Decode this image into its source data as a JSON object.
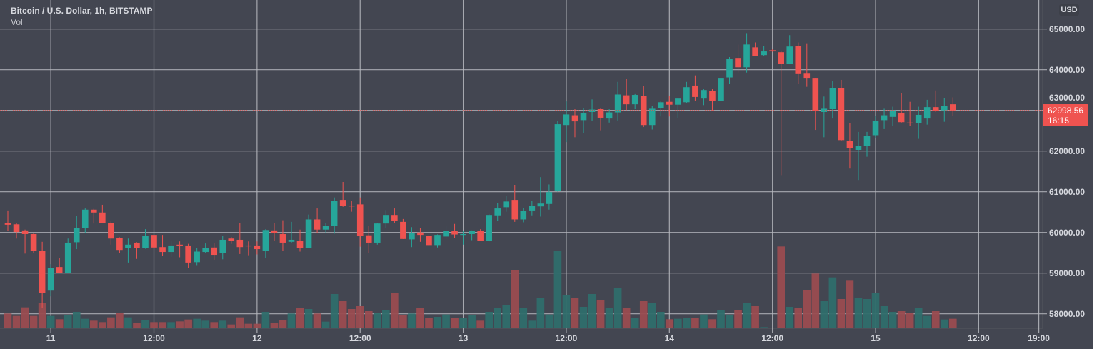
{
  "header": {
    "symbol_title": "Bitcoin / U.S. Dollar, 1h, BITSTAMP",
    "volume_label": "Vol",
    "currency": "USD"
  },
  "price_label": {
    "price": "62998.56",
    "countdown": "16:15"
  },
  "colors": {
    "background": "#434651",
    "grid": "#b8bac0",
    "up": "#26a69a",
    "down": "#ef5350",
    "volume_up": "#2f6e6b",
    "volume_down": "#9a4c50"
  },
  "chart_data": {
    "type": "candlestick",
    "title": "Bitcoin / U.S. Dollar, 1h, BITSTAMP",
    "ylim": [
      57650,
      65700
    ],
    "grid": true,
    "y_ticks": [
      "65000.00",
      "64000.00",
      "63000.00",
      "62000.00",
      "61000.00",
      "60000.00",
      "59000.00",
      "58000.00"
    ],
    "y_tick_values": [
      65000,
      64000,
      63000,
      62000,
      61000,
      60000,
      59000,
      58000
    ],
    "x_ticks": [
      {
        "label": "11",
        "at_bar": 5
      },
      {
        "label": "12:00",
        "at_bar": 17
      },
      {
        "label": "12",
        "at_bar": 29
      },
      {
        "label": "12:00",
        "at_bar": 41
      },
      {
        "label": "13",
        "at_bar": 53
      },
      {
        "label": "12:00",
        "at_bar": 65
      },
      {
        "label": "14",
        "at_bar": 77
      },
      {
        "label": "12:00",
        "at_bar": 89
      },
      {
        "label": "15",
        "at_bar": 101
      },
      {
        "label": "12:00",
        "at_bar": 113
      },
      {
        "label": "19:00",
        "at_bar": 120
      }
    ],
    "last_price": 62998.56,
    "candles_ohlc": [
      [
        60240,
        60540,
        60030,
        60190
      ],
      [
        60200,
        60230,
        59850,
        60010
      ],
      [
        60050,
        60070,
        59480,
        59960
      ],
      [
        59960,
        59980,
        59490,
        59540
      ],
      [
        59540,
        59770,
        58140,
        58520
      ],
      [
        58570,
        59220,
        58430,
        59120
      ],
      [
        59150,
        59380,
        59000,
        59000
      ],
      [
        59000,
        59850,
        59000,
        59750
      ],
      [
        59760,
        60400,
        59590,
        60100
      ],
      [
        60100,
        60590,
        59980,
        60560
      ],
      [
        60560,
        60580,
        60220,
        60490
      ],
      [
        60490,
        60680,
        60230,
        60230
      ],
      [
        60240,
        60270,
        59700,
        59850
      ],
      [
        59870,
        59880,
        59490,
        59570
      ],
      [
        59610,
        59850,
        59260,
        59700
      ],
      [
        59750,
        59760,
        59350,
        59610
      ],
      [
        59610,
        60080,
        59600,
        59910
      ],
      [
        59940,
        59950,
        59360,
        59630
      ],
      [
        59640,
        59940,
        59430,
        59520
      ],
      [
        59520,
        59780,
        59400,
        59680
      ],
      [
        59700,
        59780,
        59390,
        59670
      ],
      [
        59680,
        59720,
        59130,
        59260
      ],
      [
        59270,
        59620,
        59180,
        59530
      ],
      [
        59520,
        59730,
        59500,
        59610
      ],
      [
        59630,
        59730,
        59330,
        59450
      ],
      [
        59500,
        59910,
        59340,
        59820
      ],
      [
        59850,
        59890,
        59720,
        59790
      ],
      [
        59820,
        60230,
        59470,
        59640
      ],
      [
        59680,
        59780,
        59440,
        59670
      ],
      [
        59680,
        59780,
        59460,
        59590
      ],
      [
        59540,
        60080,
        59370,
        60060
      ],
      [
        60050,
        60230,
        59790,
        59980
      ],
      [
        59960,
        60300,
        59540,
        59750
      ],
      [
        59770,
        60260,
        59750,
        59820
      ],
      [
        59800,
        60070,
        59530,
        59620
      ],
      [
        59620,
        60440,
        59610,
        60320
      ],
      [
        60320,
        60590,
        59990,
        60070
      ],
      [
        60070,
        60240,
        59980,
        60170
      ],
      [
        60170,
        60860,
        59970,
        60770
      ],
      [
        60800,
        61240,
        60630,
        60660
      ],
      [
        60660,
        60780,
        60510,
        60640
      ],
      [
        60690,
        60860,
        59650,
        59920
      ],
      [
        59930,
        60160,
        59490,
        59750
      ],
      [
        59750,
        60230,
        59700,
        60220
      ],
      [
        60220,
        60550,
        60110,
        60430
      ],
      [
        60430,
        60590,
        60240,
        60290
      ],
      [
        60260,
        60330,
        59840,
        59840
      ],
      [
        59830,
        60130,
        59640,
        59990
      ],
      [
        60000,
        60100,
        59770,
        59940
      ],
      [
        59920,
        59940,
        59680,
        59690
      ],
      [
        59690,
        59950,
        59630,
        59940
      ],
      [
        59900,
        60170,
        59840,
        60040
      ],
      [
        60040,
        60210,
        59860,
        59950
      ],
      [
        59950,
        60030,
        59700,
        59960
      ],
      [
        59960,
        60050,
        59810,
        60030
      ],
      [
        60040,
        60080,
        59800,
        59800
      ],
      [
        59800,
        60450,
        59780,
        60430
      ],
      [
        60420,
        60720,
        60290,
        60590
      ],
      [
        60620,
        60890,
        60510,
        60760
      ],
      [
        60800,
        61170,
        60260,
        60320
      ],
      [
        60320,
        60600,
        60250,
        60530
      ],
      [
        60540,
        60770,
        60420,
        60650
      ],
      [
        60640,
        61360,
        60390,
        60710
      ],
      [
        60700,
        61180,
        60560,
        60990
      ],
      [
        61020,
        62750,
        61000,
        62660
      ],
      [
        62640,
        63220,
        62220,
        62900
      ],
      [
        62880,
        63030,
        62340,
        62730
      ],
      [
        62760,
        63050,
        62450,
        62940
      ],
      [
        62960,
        63270,
        62750,
        63020
      ],
      [
        63030,
        63050,
        62510,
        62820
      ],
      [
        62800,
        63030,
        62700,
        62950
      ],
      [
        62950,
        63700,
        62750,
        63390
      ],
      [
        63370,
        63770,
        63000,
        63150
      ],
      [
        63150,
        63400,
        63030,
        63380
      ],
      [
        63360,
        63600,
        62590,
        62640
      ],
      [
        62640,
        63110,
        62530,
        63040
      ],
      [
        63050,
        63240,
        62850,
        63200
      ],
      [
        63210,
        63350,
        62850,
        63140
      ],
      [
        63140,
        63310,
        62820,
        63290
      ],
      [
        63200,
        63700,
        63170,
        63570
      ],
      [
        63610,
        63860,
        63240,
        63330
      ],
      [
        63290,
        63520,
        63130,
        63500
      ],
      [
        63480,
        63520,
        63000,
        63240
      ],
      [
        63240,
        63930,
        62990,
        63800
      ],
      [
        63810,
        64310,
        63650,
        64270
      ],
      [
        64290,
        64620,
        63930,
        64060
      ],
      [
        64060,
        64900,
        63930,
        64620
      ],
      [
        64550,
        64670,
        64330,
        64340
      ],
      [
        64360,
        64590,
        64340,
        64450
      ],
      [
        64480,
        64520,
        64440,
        64450
      ],
      [
        64430,
        64470,
        61410,
        64150
      ],
      [
        64150,
        64850,
        64150,
        64570
      ],
      [
        64590,
        64670,
        63650,
        63910
      ],
      [
        63920,
        64650,
        63580,
        63800
      ],
      [
        63800,
        63800,
        62520,
        62990
      ],
      [
        62960,
        63340,
        62340,
        63040
      ],
      [
        63030,
        63720,
        62800,
        63550
      ],
      [
        63550,
        63750,
        62240,
        62270
      ],
      [
        62250,
        62690,
        61570,
        62080
      ],
      [
        62030,
        62470,
        61290,
        62130
      ],
      [
        62130,
        62470,
        61860,
        62380
      ],
      [
        62390,
        62860,
        62330,
        62750
      ],
      [
        62760,
        63040,
        62540,
        62880
      ],
      [
        62840,
        63090,
        62610,
        63000
      ],
      [
        62940,
        63430,
        62700,
        62710
      ],
      [
        62700,
        63210,
        62620,
        62690
      ],
      [
        62680,
        63090,
        62300,
        62890
      ],
      [
        62800,
        63260,
        62650,
        63080
      ],
      [
        63080,
        63490,
        62960,
        62990
      ],
      [
        63000,
        63300,
        62720,
        63110
      ],
      [
        63150,
        63320,
        62860,
        62999
      ]
    ],
    "volume_relative": [
      62,
      52,
      88,
      52,
      108,
      52,
      38,
      55,
      69,
      40,
      32,
      26,
      46,
      64,
      46,
      22,
      35,
      26,
      26,
      26,
      29,
      37,
      40,
      32,
      26,
      32,
      16,
      46,
      19,
      19,
      69,
      22,
      34,
      62,
      85,
      81,
      62,
      28,
      144,
      114,
      81,
      93,
      72,
      63,
      75,
      147,
      55,
      62,
      84,
      45,
      48,
      58,
      45,
      42,
      55,
      32,
      69,
      87,
      99,
      246,
      84,
      32,
      126,
      58,
      326,
      138,
      126,
      90,
      144,
      120,
      84,
      170,
      87,
      45,
      114,
      105,
      69,
      38,
      40,
      43,
      43,
      58,
      38,
      75,
      55,
      75,
      108,
      93,
      5,
      3,
      344,
      90,
      87,
      161,
      230,
      114,
      214,
      123,
      200,
      128,
      123,
      147,
      93,
      69,
      72,
      63,
      87,
      52,
      72,
      37,
      40
    ]
  }
}
